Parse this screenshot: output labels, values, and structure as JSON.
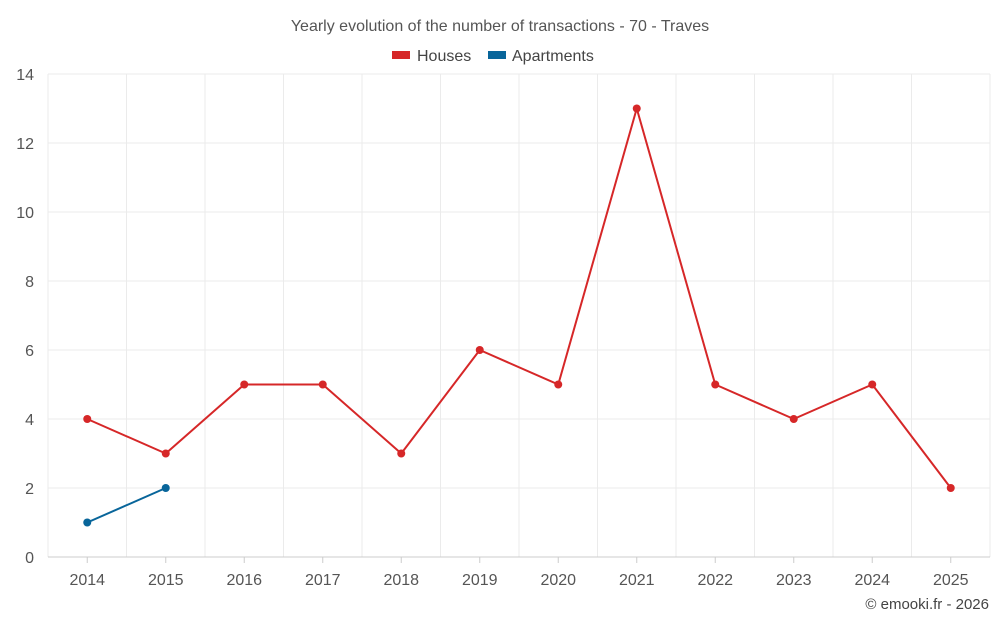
{
  "chart_data": {
    "type": "line",
    "title": "Yearly evolution of the number of transactions - 70 - Traves",
    "categories": [
      "2014",
      "2015",
      "2016",
      "2017",
      "2018",
      "2019",
      "2020",
      "2021",
      "2022",
      "2023",
      "2024",
      "2025"
    ],
    "ylim": [
      0,
      14
    ],
    "yticks": [
      0,
      2,
      4,
      6,
      8,
      10,
      12,
      14
    ],
    "grid": true,
    "legend_position": "top-center",
    "series": [
      {
        "name": "Houses",
        "color": "#d62728",
        "values": [
          4,
          3,
          5,
          5,
          3,
          6,
          5,
          13,
          5,
          4,
          5,
          2
        ]
      },
      {
        "name": "Apartments",
        "color": "#08659a",
        "values": [
          1,
          2,
          null,
          null,
          null,
          null,
          null,
          null,
          null,
          null,
          null,
          null
        ]
      }
    ],
    "credit": "© emooki.fr - 2026"
  }
}
